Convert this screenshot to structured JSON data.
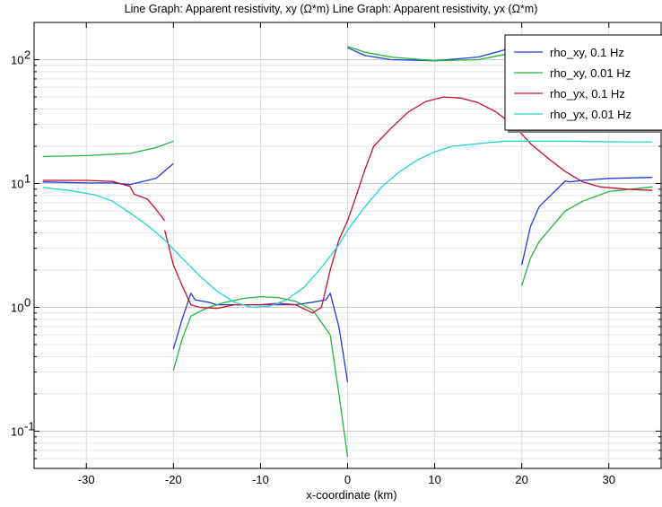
{
  "chart_data": {
    "type": "line",
    "title": "Line Graph: Apparent resistivity, xy (Ω*m)  Line Graph: Apparent resistivity, yx (Ω*m)",
    "xlabel": "x-coordinate (km)",
    "ylabel": "",
    "xlim": [
      -36,
      36
    ],
    "ylim": [
      0.05,
      200
    ],
    "y_scale": "log",
    "x_ticks": [
      -30,
      -20,
      -10,
      0,
      10,
      20,
      30
    ],
    "x_tick_labels": [
      "-30",
      "-20",
      "-10",
      "0",
      "10",
      "20",
      "30"
    ],
    "y_ticks": [
      0.1,
      1,
      10,
      100
    ],
    "y_tick_labels": [
      {
        "base": "10",
        "exp": "-1"
      },
      {
        "base": "10",
        "exp": "0"
      },
      {
        "base": "10",
        "exp": "1"
      },
      {
        "base": "10",
        "exp": "2"
      }
    ],
    "grid": true,
    "legend_position": "top-right",
    "series": [
      {
        "name": "rho_xy, 0.1 Hz",
        "color": "#1f3fd6",
        "segments": [
          [
            [
              -35,
              10.3
            ],
            [
              -30,
              10.1
            ],
            [
              -27,
              10.1
            ],
            [
              -25,
              9.8
            ],
            [
              -22,
              11.0
            ],
            [
              -20,
              14.5
            ]
          ],
          [
            [
              -20,
              0.46
            ],
            [
              -19,
              0.8
            ],
            [
              -18,
              1.3
            ],
            [
              -17.5,
              1.15
            ],
            [
              -16,
              1.1
            ],
            [
              -15,
              1.05
            ],
            [
              -13,
              1.05
            ],
            [
              -10,
              1.05
            ],
            [
              -8,
              1.05
            ],
            [
              -6,
              1.05
            ],
            [
              -4,
              1.1
            ],
            [
              -2.5,
              1.15
            ],
            [
              -2,
              1.3
            ],
            [
              -1,
              0.7
            ],
            [
              0,
              0.25
            ]
          ],
          [
            [
              0,
              125
            ],
            [
              2,
              108
            ],
            [
              5,
              100
            ],
            [
              10,
              98
            ],
            [
              15,
              105
            ],
            [
              18,
              120
            ],
            [
              20,
              145
            ]
          ],
          [
            [
              20,
              2.2
            ],
            [
              21,
              4.5
            ],
            [
              22,
              6.5
            ],
            [
              25,
              10.5
            ],
            [
              25.5,
              10.3
            ],
            [
              27,
              10.6
            ],
            [
              30,
              11.0
            ],
            [
              35,
              11.2
            ]
          ]
        ]
      },
      {
        "name": "rho_xy, 0.01 Hz",
        "color": "#22b43a",
        "segments": [
          [
            [
              -35,
              16.5
            ],
            [
              -30,
              16.8
            ],
            [
              -25,
              17.5
            ],
            [
              -22,
              19.5
            ],
            [
              -20,
              22
            ]
          ],
          [
            [
              -20,
              0.31
            ],
            [
              -19,
              0.55
            ],
            [
              -18,
              0.85
            ],
            [
              -16,
              1.0
            ],
            [
              -14,
              1.1
            ],
            [
              -12,
              1.18
            ],
            [
              -10,
              1.22
            ],
            [
              -8,
              1.2
            ],
            [
              -6,
              1.12
            ],
            [
              -4,
              0.95
            ],
            [
              -2,
              0.6
            ],
            [
              -1,
              0.2
            ],
            [
              0,
              0.062
            ]
          ],
          [
            [
              0,
              128
            ],
            [
              2,
              115
            ],
            [
              5,
              105
            ],
            [
              10,
              98
            ],
            [
              15,
              100
            ],
            [
              18,
              110
            ],
            [
              20,
              125
            ]
          ],
          [
            [
              20,
              1.5
            ],
            [
              21,
              2.5
            ],
            [
              22,
              3.4
            ],
            [
              25,
              6.0
            ],
            [
              27,
              7.2
            ],
            [
              30,
              8.6
            ],
            [
              35,
              9.4
            ]
          ]
        ]
      },
      {
        "name": "rho_yx, 0.1 Hz",
        "color": "#c8102e",
        "segments": [
          [
            [
              -35,
              10.6
            ],
            [
              -30,
              10.6
            ],
            [
              -27,
              10.4
            ],
            [
              -25,
              9.5
            ],
            [
              -24.5,
              8.2
            ],
            [
              -23,
              7.5
            ],
            [
              -22,
              6.2
            ],
            [
              -21,
              5.0
            ]
          ],
          [
            [
              -21,
              4.2
            ],
            [
              -20,
              2.2
            ],
            [
              -19,
              1.5
            ],
            [
              -18,
              1.05
            ],
            [
              -17,
              1.0
            ],
            [
              -15,
              0.98
            ],
            [
              -13,
              1.05
            ],
            [
              -10,
              1.05
            ],
            [
              -8,
              1.08
            ],
            [
              -6,
              1.05
            ],
            [
              -4,
              0.9
            ],
            [
              -3,
              1.0
            ],
            [
              -2,
              2.0
            ],
            [
              -1,
              3.5
            ],
            [
              0,
              5.0
            ],
            [
              1,
              8.0
            ],
            [
              2,
              13.0
            ],
            [
              3,
              20.0
            ],
            [
              5,
              28
            ],
            [
              7,
              38
            ],
            [
              9,
              46
            ],
            [
              11,
              50
            ],
            [
              13,
              49
            ],
            [
              15,
              45
            ],
            [
              17,
              38
            ],
            [
              19,
              30
            ],
            [
              21,
              21
            ],
            [
              23,
              16
            ],
            [
              25,
              12.5
            ],
            [
              27,
              10.3
            ],
            [
              29,
              9.4
            ],
            [
              32,
              9.0
            ],
            [
              35,
              8.8
            ]
          ]
        ]
      },
      {
        "name": "rho_yx, 0.01 Hz",
        "color": "#1fd4d0",
        "segments": [
          [
            [
              -35,
              9.3
            ],
            [
              -32,
              8.8
            ],
            [
              -29,
              8.1
            ],
            [
              -27,
              7.2
            ],
            [
              -25,
              5.8
            ],
            [
              -23,
              4.6
            ],
            [
              -21,
              3.5
            ],
            [
              -19,
              2.5
            ],
            [
              -17,
              1.8
            ],
            [
              -15,
              1.35
            ],
            [
              -13,
              1.1
            ],
            [
              -11,
              1.0
            ],
            [
              -9,
              1.02
            ],
            [
              -7,
              1.15
            ],
            [
              -5,
              1.45
            ],
            [
              -3,
              2.1
            ],
            [
              -1,
              3.2
            ],
            [
              0,
              4.2
            ],
            [
              2,
              6.5
            ],
            [
              4,
              9.5
            ],
            [
              6,
              12.5
            ],
            [
              8,
              15.5
            ],
            [
              10,
              18
            ],
            [
              12,
              20
            ],
            [
              15,
              21
            ],
            [
              18,
              22
            ],
            [
              20,
              22
            ],
            [
              22,
              22
            ],
            [
              25,
              22
            ],
            [
              28,
              21.8
            ],
            [
              32,
              21.7
            ],
            [
              35,
              21.7
            ]
          ]
        ]
      }
    ]
  }
}
